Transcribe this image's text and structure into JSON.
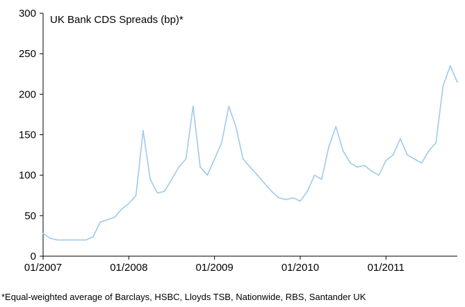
{
  "chart_data": {
    "type": "line",
    "title": "UK Bank CDS Spreads (bp)*",
    "xlabel": "",
    "ylabel": "",
    "ylim": [
      0,
      300
    ],
    "y_ticks": [
      0,
      50,
      100,
      150,
      200,
      250,
      300
    ],
    "x_ticks": [
      "01/2007",
      "01/2008",
      "01/2009",
      "01/2010",
      "01/2011"
    ],
    "xlim": [
      "2007-01",
      "2011-11"
    ],
    "grid": false,
    "legend": "none",
    "line_color": "#9ec9ec",
    "series": [
      {
        "x": [
          "2007-01",
          "2007-02",
          "2007-03",
          "2007-04",
          "2007-05",
          "2007-06",
          "2007-07",
          "2007-08",
          "2007-09",
          "2007-10",
          "2007-11",
          "2007-12",
          "2008-01",
          "2008-02",
          "2008-03",
          "2008-04",
          "2008-05",
          "2008-06",
          "2008-07",
          "2008-08",
          "2008-09",
          "2008-10",
          "2008-11",
          "2008-12",
          "2009-01",
          "2009-02",
          "2009-03",
          "2009-04",
          "2009-05",
          "2009-06",
          "2009-07",
          "2009-08",
          "2009-09",
          "2009-10",
          "2009-11",
          "2009-12",
          "2010-01",
          "2010-02",
          "2010-03",
          "2010-04",
          "2010-05",
          "2010-06",
          "2010-07",
          "2010-08",
          "2010-09",
          "2010-10",
          "2010-11",
          "2010-12",
          "2011-01",
          "2011-02",
          "2011-03",
          "2011-04",
          "2011-05",
          "2011-06",
          "2011-07",
          "2011-08",
          "2011-09",
          "2011-10",
          "2011-11"
        ],
        "values": [
          28,
          22,
          20,
          20,
          20,
          20,
          20,
          24,
          42,
          45,
          48,
          58,
          65,
          75,
          155,
          95,
          78,
          80,
          95,
          110,
          120,
          185,
          110,
          100,
          120,
          140,
          185,
          160,
          120,
          110,
          100,
          90,
          80,
          72,
          70,
          72,
          68,
          80,
          100,
          95,
          135,
          160,
          130,
          115,
          110,
          112,
          105,
          100,
          118,
          125,
          145,
          125,
          120,
          115,
          130,
          140,
          210,
          235,
          215
        ]
      }
    ]
  },
  "footnote": "*Equal-weighted average of Barclays, HSBC, Lloyds TSB, Nationwide, RBS, Santander UK"
}
